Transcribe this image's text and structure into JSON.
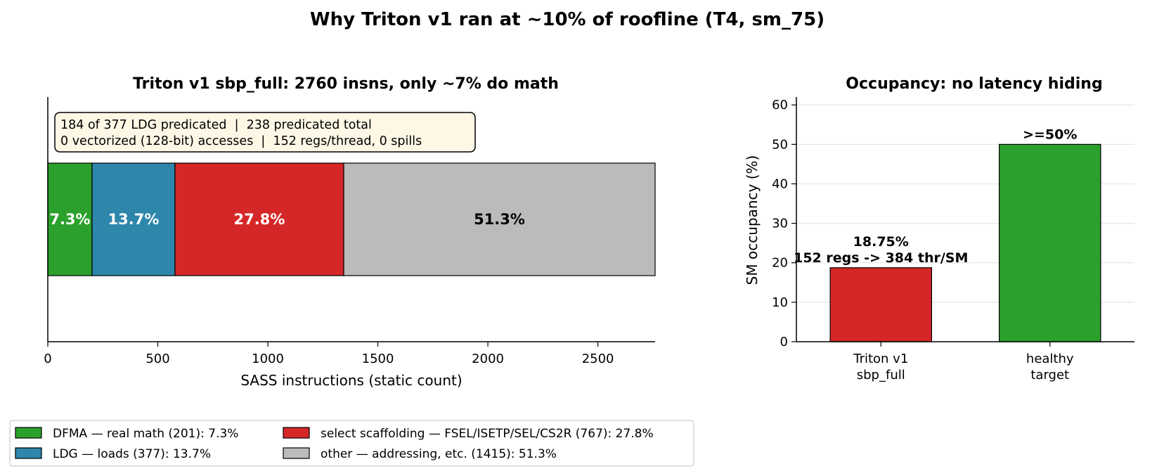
{
  "title": "Why Triton v1 ran at ~10% of roofline (T4, sm_75)",
  "colors": {
    "green": "#2ca02c",
    "blue": "#2e86ab",
    "red": "#d62728",
    "gray": "#bbbbbb"
  },
  "chart_data": [
    {
      "type": "bar",
      "orientation": "horizontal-stacked",
      "title": "Triton v1 sbp_full: 2760 insns, only ~7% do math",
      "xlabel": "SASS instructions (static count)",
      "ylabel": "",
      "xlim": [
        0,
        2760
      ],
      "xticks": [
        0,
        500,
        1000,
        1500,
        2000,
        2500
      ],
      "grid": false,
      "total": 2760,
      "series": [
        {
          "name": "DFMA — real math (201): 7.3%",
          "value": 201,
          "label": "7.3%",
          "color": "#2ca02c",
          "label_color": "#ffffff"
        },
        {
          "name": "LDG — loads (377): 13.7%",
          "value": 377,
          "label": "13.7%",
          "color": "#2e86ab",
          "label_color": "#ffffff"
        },
        {
          "name": "select scaffolding — FSEL/ISETP/SEL/CS2R (767): 27.8%",
          "value": 767,
          "label": "27.8%",
          "color": "#d62728",
          "label_color": "#ffffff"
        },
        {
          "name": "other — addressing, etc. (1415): 51.3%",
          "value": 1415,
          "label": "51.3%",
          "color": "#bbbbbb",
          "label_color": "#000000"
        }
      ],
      "annotation": [
        "184 of 377 LDG predicated  |  238 predicated total",
        "0 vectorized (128-bit) accesses  |  152 regs/thread, 0 spills"
      ],
      "legend": "bottom-left"
    },
    {
      "type": "bar",
      "title": "Occupancy: no latency hiding",
      "xlabel": "",
      "ylabel": "SM occupancy (%)",
      "ylim": [
        0,
        62
      ],
      "yticks": [
        0,
        10,
        20,
        30,
        40,
        50,
        60
      ],
      "grid": true,
      "categories": [
        [
          "Triton v1",
          "sbp_full"
        ],
        [
          "healthy",
          "target"
        ]
      ],
      "values": [
        18.75,
        50
      ],
      "colors": [
        "#d62728",
        "#2ca02c"
      ],
      "data_labels": [
        [
          "18.75%",
          "152 regs -> 384 thr/SM"
        ],
        [
          ">=50%"
        ]
      ]
    }
  ]
}
